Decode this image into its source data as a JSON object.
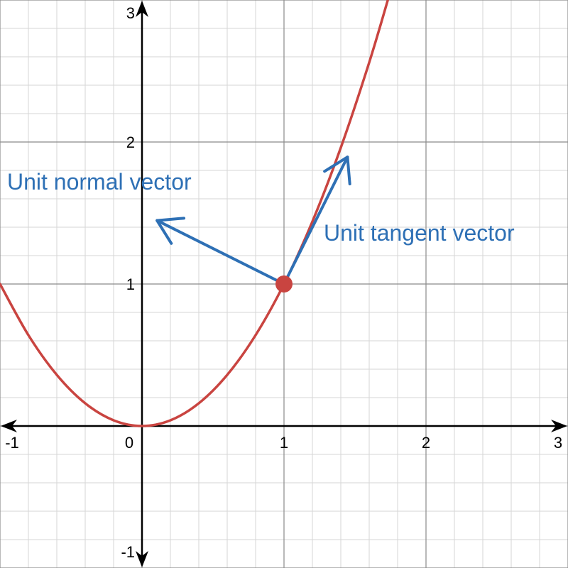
{
  "chart_data": {
    "type": "line",
    "title": "",
    "xlabel": "",
    "ylabel": "",
    "xlim": [
      -1,
      3
    ],
    "ylim": [
      -1,
      3
    ],
    "grid": true,
    "minor_grid_step": 0.2,
    "major_grid_step": 1,
    "x_ticks": [
      "-1",
      "0",
      "1",
      "2",
      "3"
    ],
    "y_ticks": [
      "-1",
      "1",
      "2",
      "3"
    ],
    "curve_color": "#c94440",
    "vector_color": "#2e70b5",
    "series": [
      {
        "x": [
          -1.0,
          -0.8,
          -0.6,
          -0.4,
          -0.2,
          0.0,
          0.2,
          0.4,
          0.6,
          0.8,
          1.0,
          1.2,
          1.4,
          1.6,
          1.74
        ],
        "y": [
          1.0,
          0.64,
          0.36,
          0.16,
          0.04,
          0.0,
          0.04,
          0.16,
          0.36,
          0.64,
          1.0,
          1.44,
          1.96,
          2.56,
          3.03
        ]
      }
    ],
    "point": {
      "x": 1,
      "y": 1
    },
    "vectors": [
      {
        "label": "Unit tangent vector",
        "from": [
          1,
          1
        ],
        "to": [
          1.447,
          1.894
        ]
      },
      {
        "label": "Unit normal vector",
        "from": [
          1,
          1
        ],
        "to": [
          0.106,
          1.447
        ]
      }
    ]
  }
}
